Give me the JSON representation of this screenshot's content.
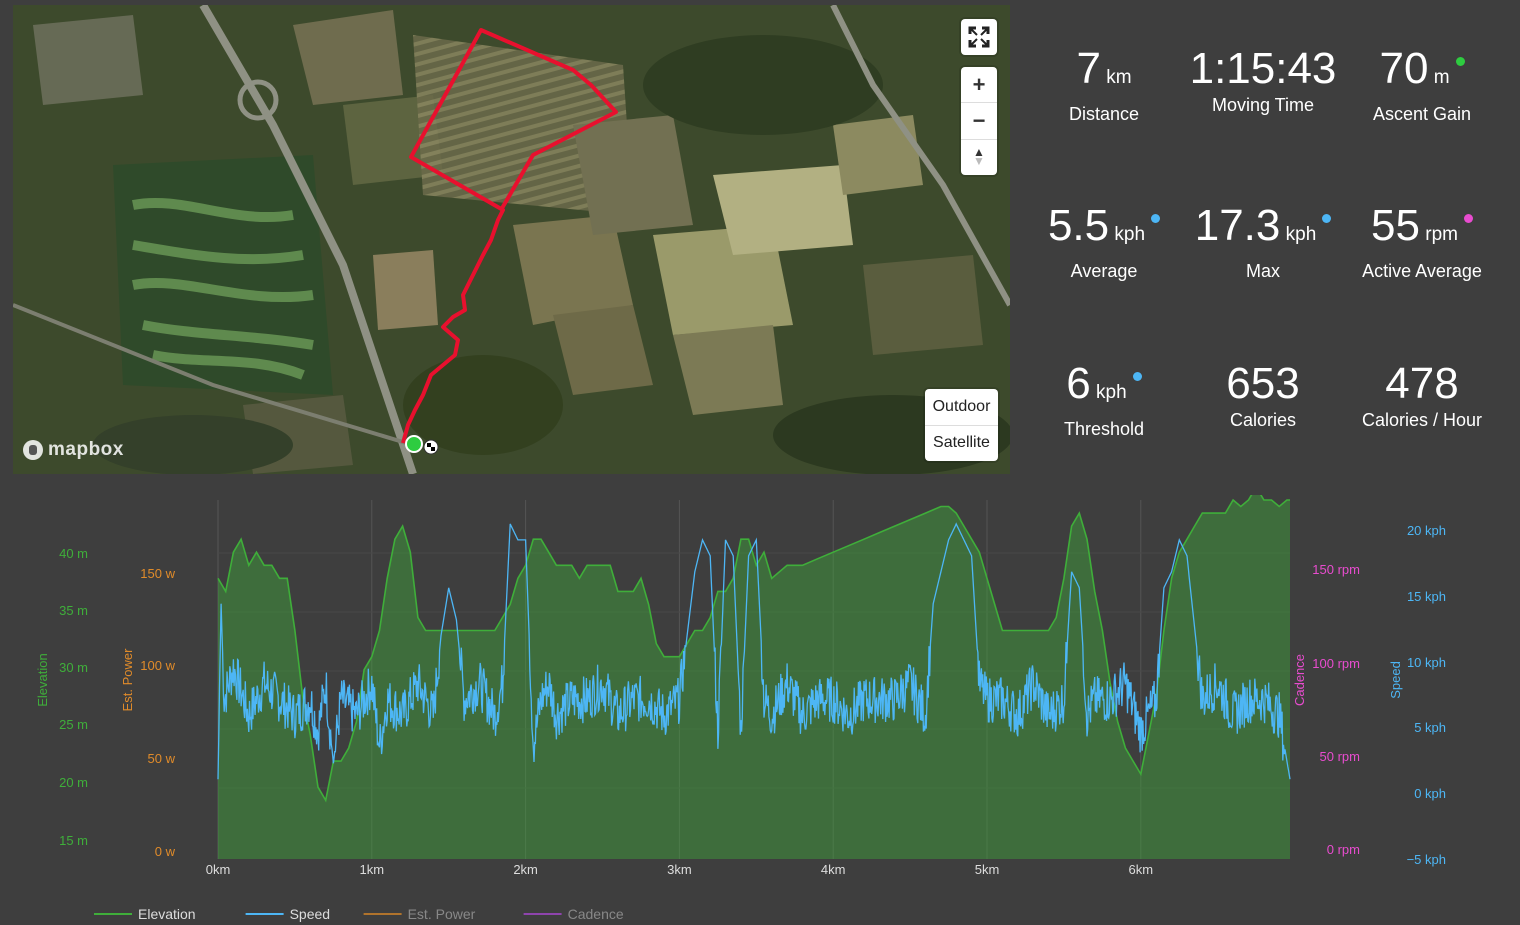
{
  "map": {
    "fullscreen_icon": "fullscreen-icon",
    "zoom_in_label": "+",
    "zoom_out_label": "−",
    "compass_label": "▲",
    "style_buttons": [
      "Outdoor",
      "Satellite"
    ],
    "attribution": "mapbox",
    "route_color": "#e8102e",
    "start_marker_color": "#2ecc40"
  },
  "stats": [
    {
      "value": "7",
      "unit": "km",
      "label": "Distance",
      "dot": ""
    },
    {
      "value": "1:15:43",
      "unit": "",
      "label": "Moving Time",
      "dot": ""
    },
    {
      "value": "70",
      "unit": "m",
      "label": "Ascent Gain",
      "dot": "#2ecc40"
    },
    {
      "value": "5.5",
      "unit": "kph",
      "label": "Average",
      "dot": "#4db6f5"
    },
    {
      "value": "17.3",
      "unit": "kph",
      "label": "Max",
      "dot": "#4db6f5"
    },
    {
      "value": "55",
      "unit": "rpm",
      "label": "Active Average",
      "dot": "#e84ccf"
    },
    {
      "value": "6",
      "unit": "kph",
      "label": "Threshold",
      "dot": "#4db6f5"
    },
    {
      "value": "653",
      "unit": "",
      "label": "Calories",
      "dot": ""
    },
    {
      "value": "478",
      "unit": "",
      "label": "Calories / Hour",
      "dot": ""
    }
  ],
  "chart_data": {
    "type": "line",
    "x_label_unit": "km",
    "x_ticks": [
      "0km",
      "1km",
      "2km",
      "3km",
      "4km",
      "5km",
      "6km"
    ],
    "xlim": [
      0,
      6.97
    ],
    "axes": {
      "elevation": {
        "title": "Elevation",
        "ticks": [
          "15 m",
          "20 m",
          "25 m",
          "30 m",
          "35 m",
          "40 m"
        ],
        "ylim": [
          12.5,
          40
        ],
        "color": "#3fae3a"
      },
      "power": {
        "title": "Est. Power",
        "ticks": [
          "0 w",
          "50 w",
          "100 w",
          "150 w"
        ],
        "ylim": [
          -5,
          155
        ],
        "color": "#e08b2a"
      },
      "cadence": {
        "title": "Cadence",
        "ticks": [
          "0 rpm",
          "50 rpm",
          "100 rpm",
          "150 rpm"
        ],
        "ylim": [
          -5,
          155
        ],
        "color": "#e84ccf"
      },
      "speed": {
        "title": "Speed",
        "ticks": [
          "−5 kph",
          "0 kph",
          "5 kph",
          "10 kph",
          "15 kph",
          "20 kph"
        ],
        "ylim": [
          -5,
          17.5
        ],
        "color": "#4db6f5"
      }
    },
    "legend": [
      {
        "name": "Elevation",
        "color": "#3fae3a"
      },
      {
        "name": "Speed",
        "color": "#4db6f5"
      },
      {
        "name": "Est. Power",
        "color": "#b0732c"
      },
      {
        "name": "Cadence",
        "color": "#8e44ad"
      }
    ],
    "legend_position": "bottom-left",
    "series": [
      {
        "name": "Elevation",
        "x": [
          0,
          0.05,
          0.1,
          0.15,
          0.2,
          0.25,
          0.3,
          0.35,
          0.4,
          0.45,
          0.5,
          0.55,
          0.6,
          0.65,
          0.7,
          0.75,
          0.8,
          0.85,
          0.9,
          0.95,
          1.0,
          1.05,
          1.1,
          1.15,
          1.2,
          1.25,
          1.3,
          1.35,
          1.4,
          1.45,
          1.5,
          1.55,
          1.6,
          1.65,
          1.7,
          1.75,
          1.8,
          1.85,
          1.9,
          1.95,
          2.0,
          2.05,
          2.1,
          2.15,
          2.2,
          2.25,
          2.3,
          2.35,
          2.4,
          2.45,
          2.5,
          2.55,
          2.6,
          2.65,
          2.7,
          2.75,
          2.8,
          2.85,
          2.9,
          2.95,
          3.0,
          3.05,
          3.1,
          3.15,
          3.2,
          3.25,
          3.3,
          3.35,
          3.4,
          3.45,
          3.5,
          3.55,
          3.6,
          3.7,
          3.8,
          3.9,
          4.0,
          4.1,
          4.2,
          4.3,
          4.4,
          4.5,
          4.6,
          4.7,
          4.75,
          4.8,
          4.85,
          4.9,
          4.95,
          5.0,
          5.05,
          5.1,
          5.15,
          5.2,
          5.25,
          5.3,
          5.35,
          5.4,
          5.45,
          5.5,
          5.55,
          5.6,
          5.65,
          5.7,
          5.75,
          5.8,
          5.85,
          5.9,
          5.95,
          6.0,
          6.05,
          6.1,
          6.15,
          6.2,
          6.25,
          6.3,
          6.35,
          6.4,
          6.45,
          6.5,
          6.55,
          6.6,
          6.65,
          6.7,
          6.75,
          6.8,
          6.85,
          6.9,
          6.95,
          6.97
        ],
        "values": [
          34,
          33,
          36,
          37,
          35,
          36,
          35,
          35,
          34,
          34,
          30,
          25,
          22,
          18,
          17,
          20,
          20,
          21,
          23,
          27,
          28,
          30,
          34,
          37,
          38,
          36,
          31,
          30,
          30,
          30,
          30,
          30,
          30,
          30,
          30,
          30,
          30,
          31,
          32,
          34,
          35,
          37,
          37,
          36,
          35,
          35,
          35,
          34,
          35,
          35,
          35,
          35,
          33,
          33,
          33,
          34,
          32,
          29,
          28,
          28,
          28,
          29,
          30,
          30,
          31,
          33,
          33,
          34,
          37,
          37,
          35,
          36,
          34,
          35,
          35,
          35.5,
          36,
          36.5,
          37,
          37.5,
          38,
          38.5,
          39,
          39.5,
          39.5,
          39,
          38,
          37,
          36,
          34,
          32,
          30,
          30,
          30,
          30,
          30,
          30,
          30,
          31,
          34,
          38,
          39,
          37,
          33,
          30,
          26,
          23,
          21,
          20,
          19,
          22,
          25,
          30,
          34,
          36,
          37,
          38,
          39,
          39,
          39,
          39,
          40,
          39.5,
          40,
          41,
          40,
          40,
          39.5,
          40,
          40
        ]
      },
      {
        "name": "Speed",
        "x": [
          0,
          0.02,
          0.04,
          0.1,
          0.2,
          0.3,
          0.4,
          0.5,
          0.6,
          0.65,
          0.7,
          0.75,
          0.8,
          0.9,
          1.0,
          1.05,
          1.1,
          1.2,
          1.3,
          1.4,
          1.45,
          1.5,
          1.55,
          1.6,
          1.7,
          1.75,
          1.8,
          1.85,
          1.9,
          1.95,
          2.0,
          2.05,
          2.1,
          2.15,
          2.2,
          2.3,
          2.4,
          2.5,
          2.6,
          2.7,
          2.8,
          2.9,
          3.0,
          3.1,
          3.15,
          3.2,
          3.25,
          3.3,
          3.35,
          3.4,
          3.45,
          3.5,
          3.55,
          3.6,
          3.7,
          3.8,
          3.9,
          4.0,
          4.1,
          4.2,
          4.3,
          4.4,
          4.5,
          4.6,
          4.65,
          4.7,
          4.75,
          4.8,
          4.85,
          4.9,
          4.95,
          5.0,
          5.1,
          5.2,
          5.3,
          5.4,
          5.5,
          5.55,
          5.6,
          5.65,
          5.7,
          5.8,
          5.9,
          6.0,
          6.1,
          6.15,
          6.2,
          6.25,
          6.3,
          6.4,
          6.5,
          6.6,
          6.7,
          6.8,
          6.9,
          6.97
        ],
        "values": [
          0,
          11,
          5,
          7,
          4,
          6,
          5,
          4,
          5,
          3,
          6,
          1,
          5,
          4,
          6,
          2,
          5,
          4,
          6,
          4,
          9,
          12,
          10,
          5,
          6,
          5,
          4,
          6,
          16,
          15,
          15,
          2,
          5,
          6,
          4,
          5,
          5,
          6,
          4,
          5,
          5,
          4,
          5,
          13,
          15,
          14,
          3,
          15,
          14,
          3,
          14,
          15,
          5,
          4,
          6,
          4,
          5,
          5,
          4,
          5,
          5,
          5,
          6,
          4,
          11,
          13,
          15,
          16,
          15,
          14,
          6,
          5,
          5,
          4,
          6,
          4,
          5,
          13,
          12,
          4,
          5,
          5,
          6,
          3,
          5,
          12,
          13,
          15,
          14,
          5,
          6,
          4,
          5,
          5,
          4,
          0
        ]
      }
    ]
  }
}
